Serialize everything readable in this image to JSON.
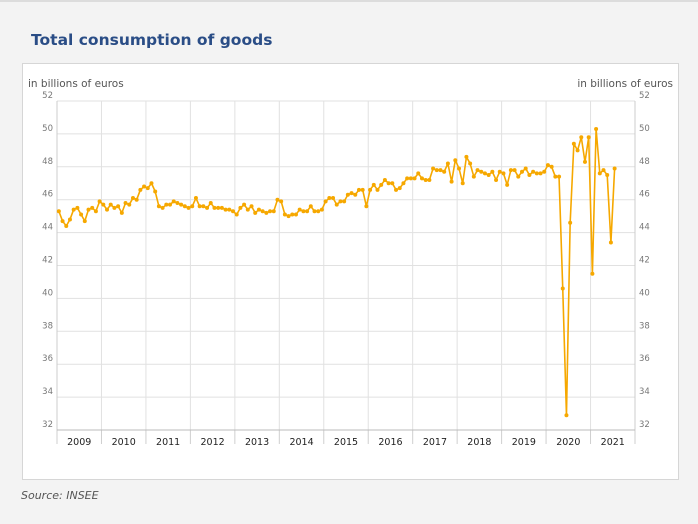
{
  "title": "Total consumption of goods",
  "source": "Source: INSEE",
  "chart_data": {
    "type": "line",
    "title": "Total consumption of goods",
    "ylabel_left": "in billions of euros",
    "ylabel_right": "in billions of euros",
    "ylim": [
      32,
      52
    ],
    "yticks": [
      32,
      34,
      36,
      38,
      40,
      42,
      44,
      46,
      48,
      50,
      52
    ],
    "years": [
      "2009",
      "2010",
      "2011",
      "2012",
      "2013",
      "2014",
      "2015",
      "2016",
      "2017",
      "2018",
      "2019",
      "2020",
      "2021"
    ],
    "grid": true,
    "color": "#f6a800",
    "series": [
      {
        "name": "",
        "start": "2009-01",
        "frequency": "monthly",
        "values": [
          45.3,
          44.7,
          44.4,
          44.8,
          45.4,
          45.5,
          45.1,
          44.7,
          45.4,
          45.5,
          45.3,
          45.9,
          45.7,
          45.4,
          45.7,
          45.5,
          45.6,
          45.2,
          45.8,
          45.7,
          46.1,
          46.0,
          46.6,
          46.8,
          46.7,
          47.0,
          46.5,
          45.6,
          45.5,
          45.7,
          45.7,
          45.9,
          45.8,
          45.7,
          45.6,
          45.5,
          45.6,
          46.1,
          45.6,
          45.6,
          45.5,
          45.8,
          45.5,
          45.5,
          45.5,
          45.4,
          45.4,
          45.3,
          45.1,
          45.5,
          45.7,
          45.4,
          45.6,
          45.2,
          45.4,
          45.3,
          45.2,
          45.3,
          45.3,
          46.0,
          45.9,
          45.1,
          45.0,
          45.1,
          45.1,
          45.4,
          45.3,
          45.3,
          45.6,
          45.3,
          45.3,
          45.4,
          45.9,
          46.1,
          46.1,
          45.7,
          45.9,
          45.9,
          46.3,
          46.4,
          46.3,
          46.6,
          46.6,
          45.6,
          46.6,
          46.9,
          46.6,
          46.9,
          47.2,
          47.0,
          47.0,
          46.6,
          46.7,
          47.0,
          47.3,
          47.3,
          47.3,
          47.6,
          47.3,
          47.2,
          47.2,
          47.9,
          47.8,
          47.8,
          47.7,
          48.2,
          47.1,
          48.4,
          47.9,
          47.0,
          48.6,
          48.2,
          47.4,
          47.8,
          47.7,
          47.6,
          47.5,
          47.7,
          47.2,
          47.7,
          47.6,
          46.9,
          47.8,
          47.8,
          47.4,
          47.7,
          47.9,
          47.5,
          47.7,
          47.6,
          47.6,
          47.7,
          48.1,
          48.0,
          47.4,
          47.4,
          40.6,
          32.9,
          44.6,
          49.4,
          49.0,
          49.8,
          48.3,
          49.8,
          41.5,
          50.3,
          47.6,
          47.8,
          47.5,
          43.4,
          47.9
        ]
      }
    ]
  }
}
